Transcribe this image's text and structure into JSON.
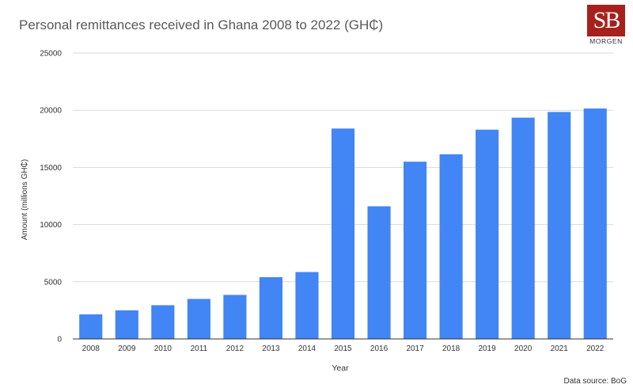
{
  "title": "Personal remittances received in Ghana 2008 to 2022 (GH₵)",
  "logo": {
    "mark": "SB",
    "text": "MORGEN"
  },
  "source": "Data source: BoG",
  "colors": {
    "bar": "#4285f4",
    "grid": "#d9d9d9",
    "axis": "#333333",
    "text": "#333333"
  },
  "chart_data": {
    "type": "bar",
    "categories": [
      "2008",
      "2009",
      "2010",
      "2011",
      "2012",
      "2013",
      "2014",
      "2015",
      "2016",
      "2017",
      "2018",
      "2019",
      "2020",
      "2021",
      "2022"
    ],
    "values": [
      2150,
      2500,
      2950,
      3500,
      3850,
      5400,
      5850,
      18400,
      11600,
      15500,
      16150,
      18300,
      19350,
      19850,
      20150
    ],
    "xlabel": "Year",
    "ylabel": "Amount (millions GH₵)",
    "ylim": [
      0,
      25000
    ],
    "yticks": [
      0,
      5000,
      10000,
      15000,
      20000,
      25000
    ],
    "grid": true,
    "legend": "none"
  }
}
